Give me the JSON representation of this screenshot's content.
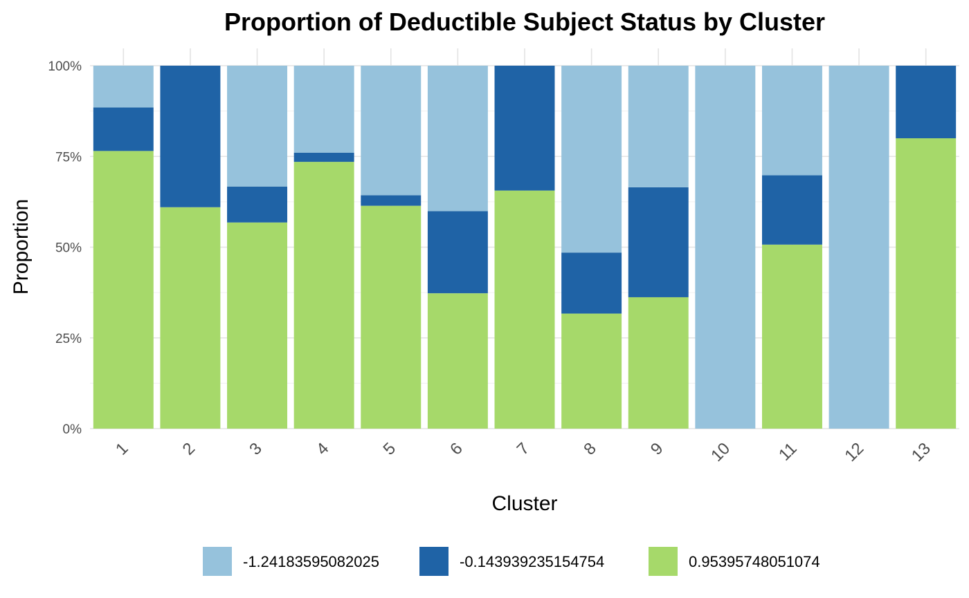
{
  "chart_data": {
    "type": "bar",
    "stacked": true,
    "normalized": true,
    "title": "Proportion of Deductible Subject Status by Cluster",
    "xlabel": "Cluster",
    "ylabel": "Proportion",
    "ylim": [
      0,
      1
    ],
    "yticks": [
      {
        "value": 0,
        "label": "0%"
      },
      {
        "value": 0.25,
        "label": "25%"
      },
      {
        "value": 0.5,
        "label": "50%"
      },
      {
        "value": 0.75,
        "label": "75%"
      },
      {
        "value": 1,
        "label": "100%"
      }
    ],
    "grid": true,
    "legend_position": "bottom",
    "categories": [
      "1",
      "2",
      "3",
      "4",
      "5",
      "6",
      "7",
      "8",
      "9",
      "10",
      "11",
      "12",
      "13"
    ],
    "series": [
      {
        "name": "0.95395748051074",
        "color": "#a6d96a",
        "values": [
          0.765,
          0.61,
          0.568,
          0.735,
          0.614,
          0.373,
          0.656,
          0.317,
          0.362,
          0,
          0.507,
          0,
          0.8
        ]
      },
      {
        "name": "-0.143939235154754",
        "color": "#1f63a6",
        "values": [
          0.12,
          0.39,
          0.099,
          0.025,
          0.029,
          0.226,
          0.344,
          0.168,
          0.303,
          0,
          0.191,
          0,
          0.2
        ]
      },
      {
        "name": "-1.24183595082025",
        "color": "#96c2dc",
        "values": [
          0.115,
          0,
          0.333,
          0.24,
          0.357,
          0.401,
          0,
          0.515,
          0.335,
          1,
          0.302,
          1,
          0
        ]
      }
    ],
    "legend_order": [
      "-1.24183595082025",
      "-0.143939235154754",
      "0.95395748051074"
    ]
  }
}
